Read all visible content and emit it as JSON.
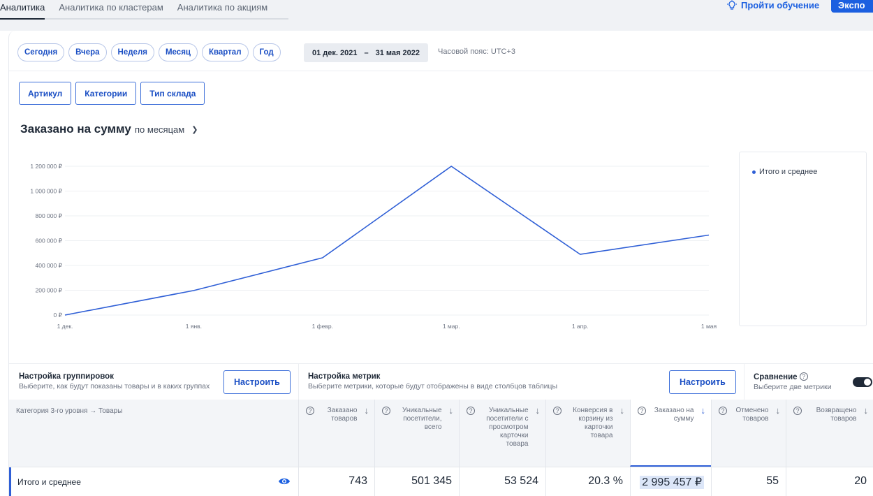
{
  "tabs": [
    {
      "label": "Аналитика",
      "active": true
    },
    {
      "label": "Аналитика по кластерам",
      "active": false
    },
    {
      "label": "Аналитика по акциям",
      "active": false
    }
  ],
  "header": {
    "tour_label": "Пройти обучение",
    "export_label": "Экспо"
  },
  "periods": [
    "Сегодня",
    "Вчера",
    "Неделя",
    "Месяц",
    "Квартал",
    "Год"
  ],
  "date_range": {
    "from": "01 дек. 2021",
    "sep": "–",
    "to": "31 мая 2022"
  },
  "timezone": "Часовой пояс: UTC+3",
  "groups": [
    "Артикул",
    "Категории",
    "Тип склада"
  ],
  "chart_header": {
    "title": "Заказано на сумму",
    "period": "по месяцам"
  },
  "chart_data": {
    "type": "line",
    "x": [
      "1 дек.",
      "1 янв.",
      "1 февр.",
      "1 мар.",
      "1 апр.",
      "1 мая"
    ],
    "series": [
      {
        "name": "Итого и среднее",
        "values": [
          0,
          198000,
          462000,
          1200000,
          490000,
          645000
        ],
        "color": "#2f5fd6"
      }
    ],
    "y_ticks": [
      "0 ₽",
      "200 000 ₽",
      "400 000 ₽",
      "600 000 ₽",
      "800 000 ₽",
      "1 000 000 ₽",
      "1 200 000 ₽"
    ],
    "ylim": [
      0,
      1200000
    ],
    "grid": true,
    "legend": "right"
  },
  "settings": {
    "groupings": {
      "title": "Настройка группировок",
      "subtitle": "Выберите, как будут показаны товары и в каких группах",
      "button": "Настроить"
    },
    "metrics": {
      "title": "Настройка метрик",
      "subtitle": "Выберите метрики, которые будут отображены в виде столбцов таблицы",
      "button": "Настроить"
    },
    "compare": {
      "title": "Сравнение",
      "subtitle": "Выберите две метрики",
      "enabled": true
    }
  },
  "table": {
    "first_header": "Категория 3-го уровня → Товары",
    "columns": [
      {
        "label": "Заказано товаров",
        "help": true
      },
      {
        "label": "Уникальные посетители, всего",
        "help": true
      },
      {
        "label": "Уникальные посетители с просмотром карточки товара",
        "help": true
      },
      {
        "label": "Конверсия в корзину из карточки товара",
        "help": true
      },
      {
        "label": "Заказано на сумму",
        "help": true,
        "selected": true
      },
      {
        "label": "Отменено товаров",
        "help": true
      },
      {
        "label": "Возвращено товаров",
        "help": true
      }
    ],
    "rows": [
      {
        "label": "Итого и среднее",
        "values": [
          "743",
          "501 345",
          "53 524",
          "20.3 %",
          "2 995 457 ₽",
          "55",
          "20"
        ]
      }
    ]
  }
}
